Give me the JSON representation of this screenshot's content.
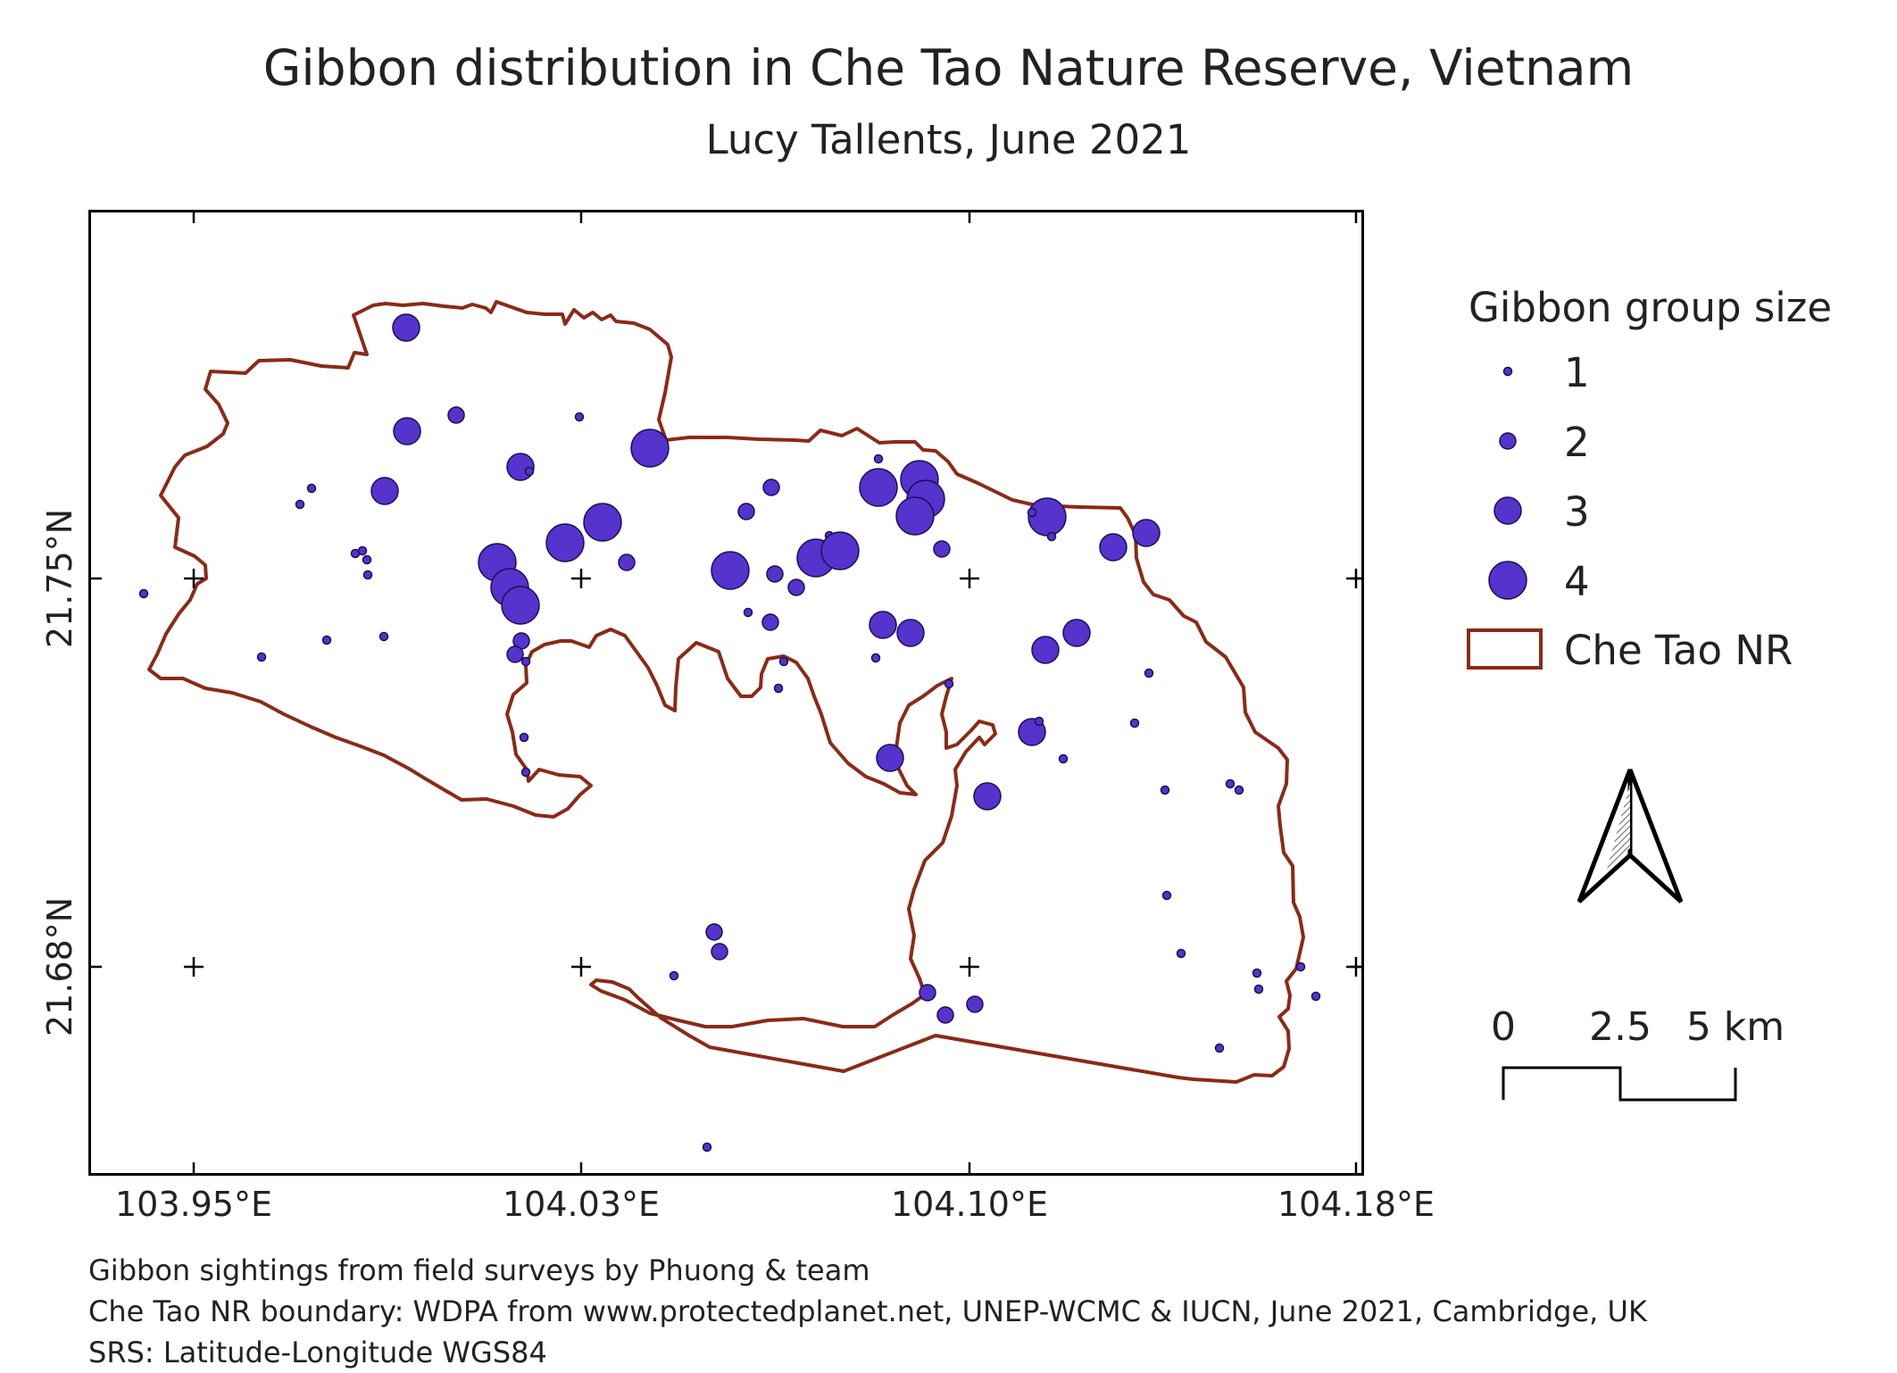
{
  "title": "Gibbon distribution in Che Tao Nature Reserve, Vietnam",
  "subtitle": "Lucy Tallents, June 2021",
  "map": {
    "lon_labels": [
      "103.95°E",
      "104.03°E",
      "104.10°E",
      "104.18°E"
    ],
    "lat_labels": [
      "21.75°N",
      "21.68°N"
    ]
  },
  "legend": {
    "title": "Gibbon group size",
    "sizes": [
      "1",
      "2",
      "3",
      "4"
    ],
    "boundary_label": "Che Tao NR"
  },
  "north_arrow": {
    "icon": "north-arrow-icon"
  },
  "scale_bar": {
    "labels": [
      "0",
      "2.5",
      "5 km"
    ]
  },
  "credits": [
    "Gibbon sightings from field surveys by Phuong & team",
    "Che Tao NR boundary: WDPA from www.protectedplanet.net, UNEP-WCMC & IUCN, June 2021, Cambridge, UK",
    "SRS: Latitude-Longitude WGS84"
  ],
  "colors": {
    "sighting_fill": "#5533cc",
    "sighting_stroke": "#1a0f55",
    "boundary": "#8b2a16"
  }
}
